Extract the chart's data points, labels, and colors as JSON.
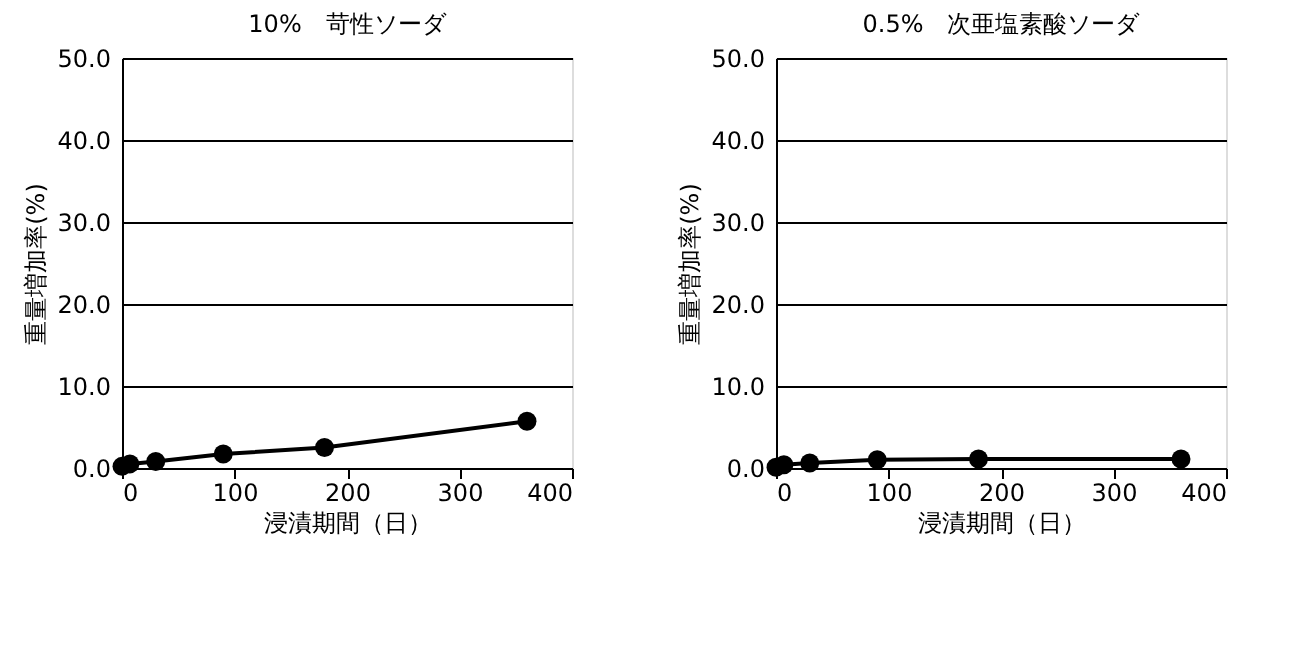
{
  "chart_data": [
    {
      "type": "line",
      "title": "10%　苛性ソーダ",
      "xlabel": "浸漬期間（日）",
      "ylabel": "重量増加率(%)",
      "x": [
        0,
        7,
        30,
        90,
        180,
        360
      ],
      "series": [
        {
          "color": "#000000",
          "values": [
            0.2,
            0.5,
            0.8,
            1.7,
            2.5,
            5.7
          ]
        }
      ],
      "xlim": [
        0,
        400
      ],
      "xticks": [
        0,
        100,
        200,
        300,
        400
      ],
      "ylim": [
        0,
        50
      ],
      "yticks": [
        {
          "value": 0,
          "label": "0.0"
        },
        {
          "value": 10,
          "label": "10.0"
        },
        {
          "value": 20,
          "label": "20.0"
        },
        {
          "value": 30,
          "label": "30.0"
        },
        {
          "value": 40,
          "label": "40.0"
        },
        {
          "value": 50,
          "label": "50.0"
        }
      ],
      "grid": "y",
      "marker": "circle",
      "line_style": "solid"
    },
    {
      "type": "line",
      "title": "0.5%　次亜塩素酸ソーダ",
      "xlabel": "浸漬期間（日）",
      "ylabel": "重量増加率(%)",
      "x": [
        0,
        7,
        30,
        90,
        180,
        360
      ],
      "series": [
        {
          "color": "#000000",
          "values": [
            0.1,
            0.4,
            0.6,
            1.0,
            1.1,
            1.1
          ]
        }
      ],
      "xlim": [
        0,
        400
      ],
      "xticks": [
        0,
        100,
        200,
        300,
        400
      ],
      "ylim": [
        0,
        50
      ],
      "yticks": [
        {
          "value": 0,
          "label": "0.0"
        },
        {
          "value": 10,
          "label": "10.0"
        },
        {
          "value": 20,
          "label": "20.0"
        },
        {
          "value": 30,
          "label": "30.0"
        },
        {
          "value": 40,
          "label": "40.0"
        },
        {
          "value": 50,
          "label": "50.0"
        }
      ],
      "grid": "y",
      "marker": "circle",
      "line_style": "solid"
    }
  ]
}
